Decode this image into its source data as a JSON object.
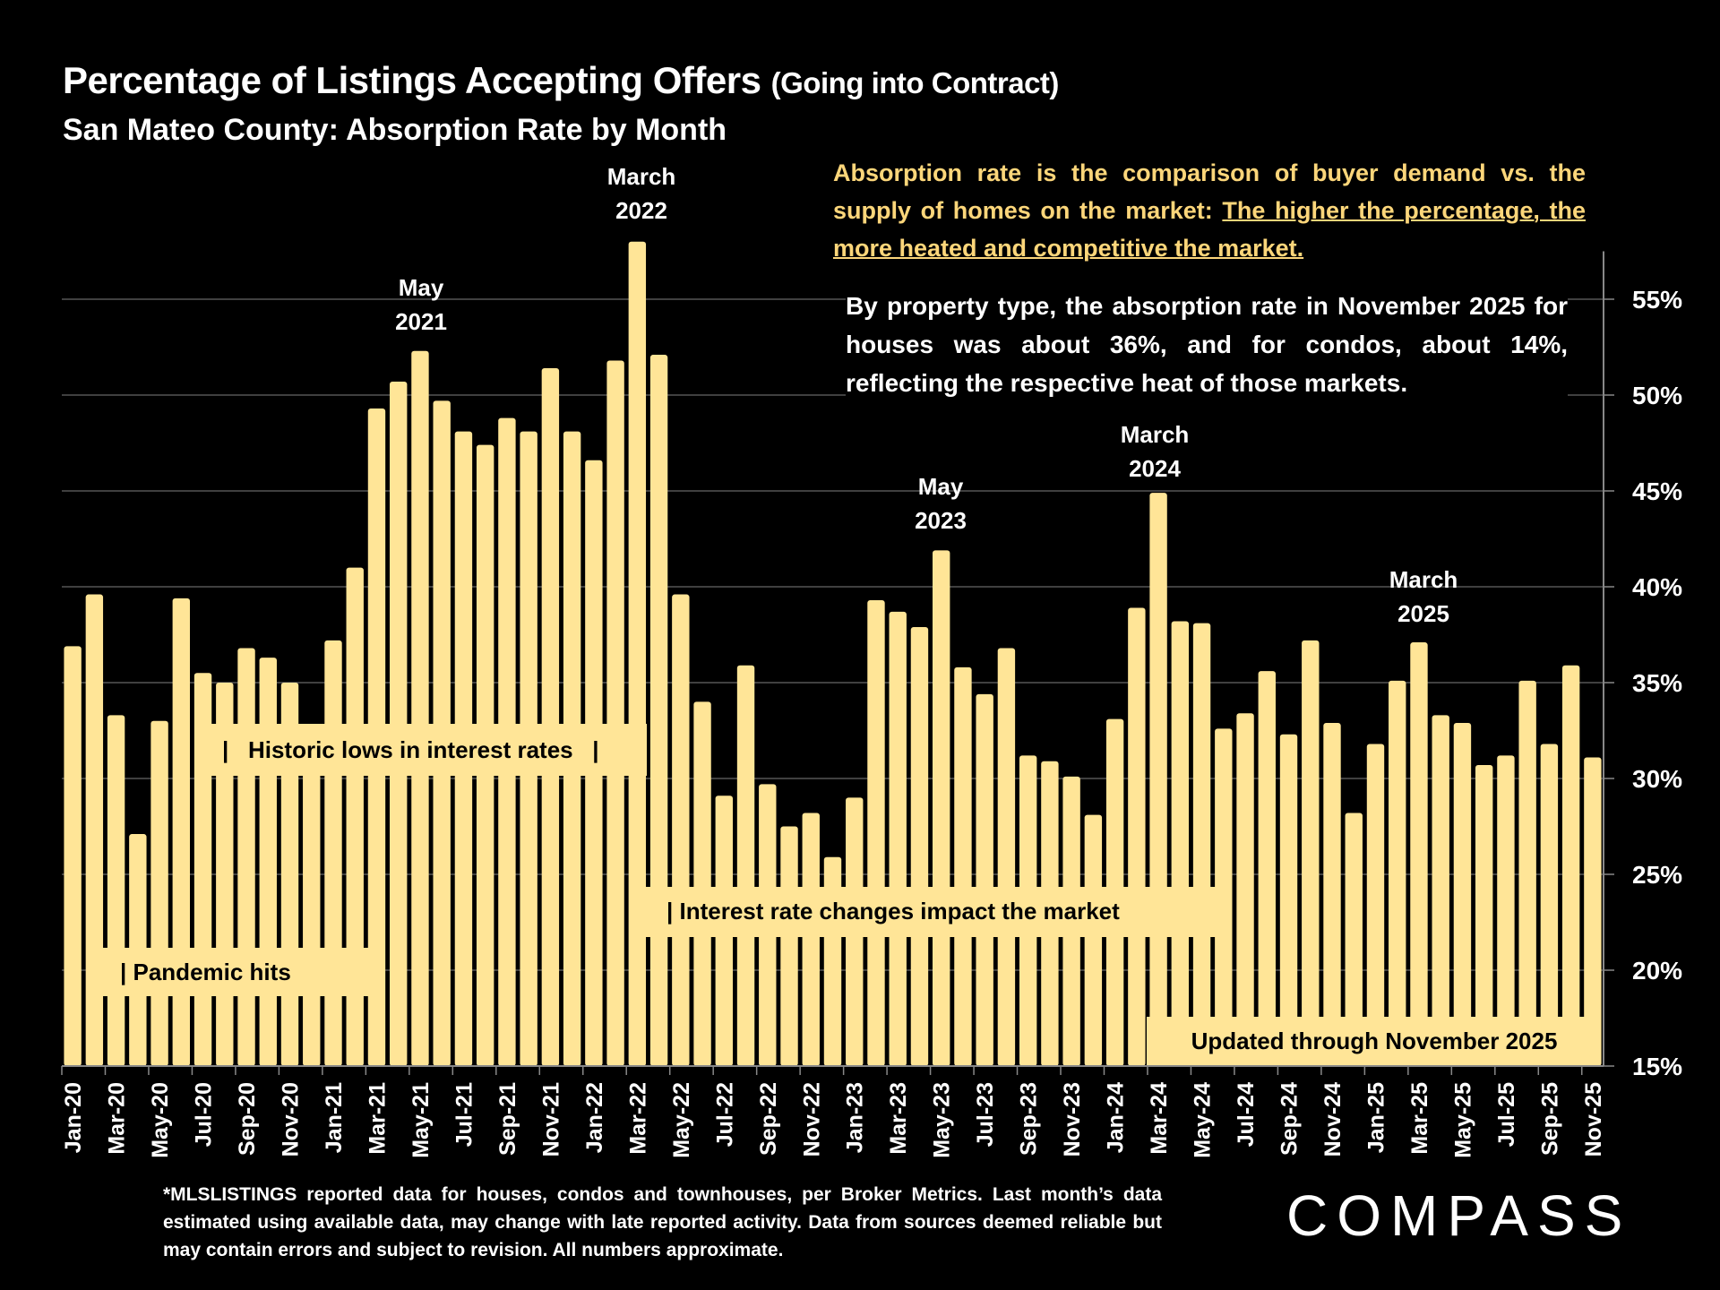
{
  "header": {
    "title": "Percentage of Listings Accepting Offers",
    "title_paren": "(Going into Contract)",
    "subtitle": "San Mateo County:  Absorption Rate by Month"
  },
  "notes": {
    "definition_plain": "Absorption rate is the comparison of buyer demand vs. the supply of homes on the market: ",
    "definition_underlined": "The higher the percentage, the more heated and competitive the market.",
    "property_type": "By property type, the absorption rate in November 2025 for houses was about 36%, and for condos, about 14%, reflecting the respective heat of those markets."
  },
  "annotations": {
    "peak_may_2021": [
      "May",
      "2021"
    ],
    "peak_march_2022": [
      "March",
      "2022"
    ],
    "peak_may_2023": [
      "May",
      "2023"
    ],
    "peak_march_2024": [
      "March",
      "2024"
    ],
    "peak_march_2025": [
      "March",
      "2025"
    ],
    "pandemic": "| Pandemic hits",
    "historic_lows": "|   Historic lows in interest rates   |",
    "rate_changes": "| Interest rate changes impact the market",
    "updated": "Updated through November 2025"
  },
  "footer": {
    "disclaimer": "*MLSLISTINGS reported data for houses, condos and townhouses, per Broker Metrics. Last month’s data estimated using available data, may change with late reported activity. Data from sources deemed reliable but may contain errors and subject to revision. All numbers approximate.",
    "logo": "COMPASS"
  },
  "colors": {
    "bar": "#FFE597",
    "accent_text": "#FCD67A",
    "background": "#000000",
    "grid": "#555555"
  },
  "chart_data": {
    "type": "bar",
    "title": "Percentage of Listings Accepting Offers (Going into Contract)",
    "subtitle": "San Mateo County: Absorption Rate by Month",
    "xlabel": "",
    "ylabel": "",
    "y_axis_side": "right",
    "ylim": [
      15,
      58
    ],
    "yticks": [
      15,
      20,
      25,
      30,
      35,
      40,
      45,
      50,
      55
    ],
    "ytick_labels": [
      "15%",
      "20%",
      "25%",
      "30%",
      "35%",
      "40%",
      "45%",
      "50%",
      "55%"
    ],
    "grid": true,
    "categories": [
      "Jan-20",
      "Feb-20",
      "Mar-20",
      "Apr-20",
      "May-20",
      "Jun-20",
      "Jul-20",
      "Aug-20",
      "Sep-20",
      "Oct-20",
      "Nov-20",
      "Dec-20",
      "Jan-21",
      "Feb-21",
      "Mar-21",
      "Apr-21",
      "May-21",
      "Jun-21",
      "Jul-21",
      "Aug-21",
      "Sep-21",
      "Oct-21",
      "Nov-21",
      "Dec-21",
      "Jan-22",
      "Feb-22",
      "Mar-22",
      "Apr-22",
      "May-22",
      "Jun-22",
      "Jul-22",
      "Aug-22",
      "Sep-22",
      "Oct-22",
      "Nov-22",
      "Dec-22",
      "Jan-23",
      "Feb-23",
      "Mar-23",
      "Apr-23",
      "May-23",
      "Jun-23",
      "Jul-23",
      "Aug-23",
      "Sep-23",
      "Oct-23",
      "Nov-23",
      "Dec-23",
      "Jan-24",
      "Feb-24",
      "Mar-24",
      "Apr-24",
      "May-24",
      "Jun-24",
      "Jul-24",
      "Aug-24",
      "Sep-24",
      "Oct-24",
      "Nov-24",
      "Dec-24",
      "Jan-25",
      "Feb-25",
      "Mar-25",
      "Apr-25",
      "May-25",
      "Jun-25",
      "Jul-25",
      "Aug-25",
      "Sep-25",
      "Oct-25",
      "Nov-25"
    ],
    "xtick_labels_every": 2,
    "values": [
      36.9,
      39.6,
      33.3,
      27.1,
      33.0,
      39.4,
      35.5,
      35.0,
      36.8,
      36.3,
      35.0,
      32.5,
      37.2,
      41.0,
      49.3,
      50.7,
      52.3,
      49.7,
      48.1,
      47.4,
      48.8,
      48.1,
      51.4,
      48.1,
      46.6,
      51.8,
      58.0,
      52.1,
      39.6,
      34.0,
      29.1,
      35.9,
      29.7,
      27.5,
      28.2,
      25.9,
      29.0,
      39.3,
      38.7,
      37.9,
      41.9,
      35.8,
      34.4,
      36.8,
      31.2,
      30.9,
      30.1,
      28.1,
      33.1,
      38.9,
      44.9,
      38.2,
      38.1,
      32.6,
      33.4,
      35.6,
      32.3,
      37.2,
      32.9,
      28.2,
      31.8,
      35.1,
      37.1,
      33.3,
      32.9,
      30.7,
      31.2,
      35.1,
      31.8,
      35.9,
      31.1
    ],
    "unit": "%"
  }
}
